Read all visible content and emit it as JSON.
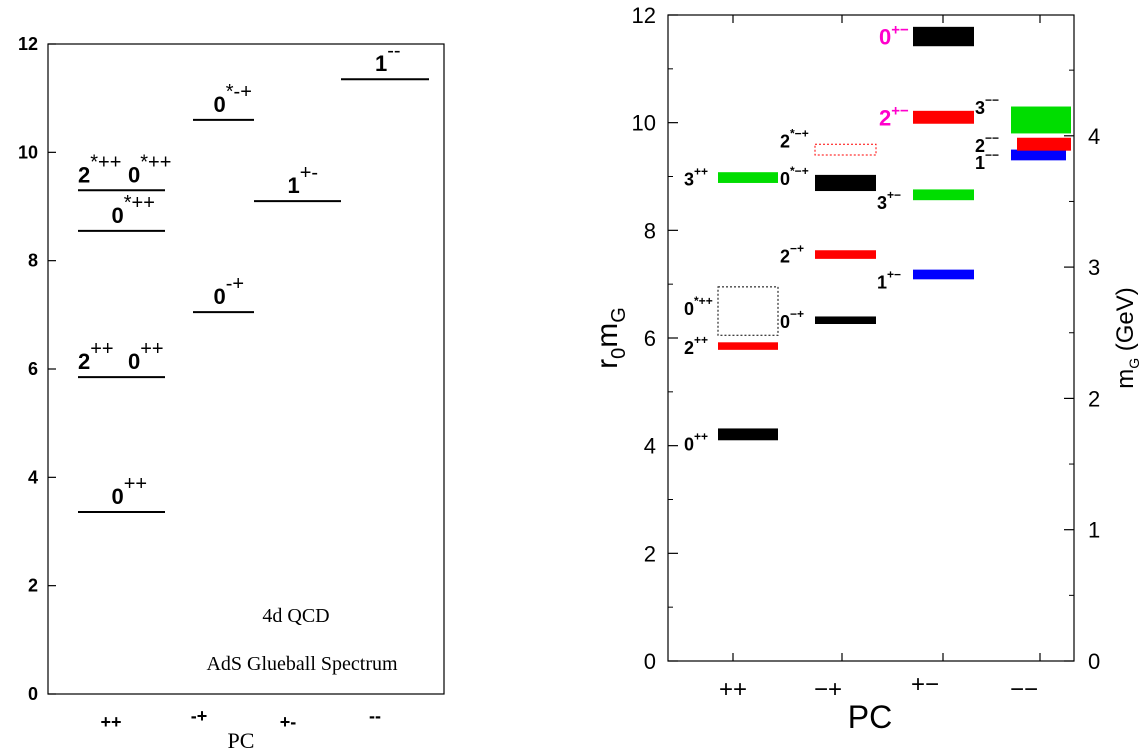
{
  "chart_data": [
    {
      "type": "bar",
      "title": "",
      "annotations": [
        "4d  QCD",
        "AdS Glueball Spectrum"
      ],
      "xlabel": "PC",
      "ylabel": "",
      "ylim": [
        0,
        12
      ],
      "yticks": [
        "0",
        "2",
        "4",
        "6",
        "8",
        "10",
        "12"
      ],
      "categories": [
        "++",
        "-+",
        "+-",
        "--"
      ],
      "levels": [
        {
          "category": "++",
          "value": 3.36,
          "label": "0",
          "sup": "++"
        },
        {
          "category": "++",
          "value": 5.85,
          "label": "2",
          "sup": "++",
          "label2": "0",
          "sup2": "++"
        },
        {
          "category": "++",
          "value": 8.55,
          "label": "0",
          "sup": "*++"
        },
        {
          "category": "++",
          "value": 9.3,
          "label": "2",
          "sup": "*++",
          "label2": "0",
          "sup2": "*++"
        },
        {
          "category": "-+",
          "value": 7.05,
          "label": "0",
          "sup": "-+"
        },
        {
          "category": "-+",
          "value": 10.6,
          "label": "0",
          "sup": "*-+"
        },
        {
          "category": "+-",
          "value": 9.1,
          "label": "1",
          "sup": "+-"
        },
        {
          "category": "--",
          "value": 11.35,
          "label": "1",
          "sup": "--"
        }
      ]
    },
    {
      "type": "bar",
      "title": "",
      "xlabel": "PC",
      "ylabel": "r0mG",
      "ylabel_main": "r",
      "ylabel_sub1": "0",
      "ylabel_mid": "m",
      "ylabel_sub2": "G",
      "y2label": "mG (GeV)",
      "y2label_main": "m",
      "y2label_sub": "G",
      "y2label_unit": " (GeV)",
      "ylim": [
        0,
        12
      ],
      "yticks": [
        "0",
        "2",
        "4",
        "6",
        "8",
        "10",
        "12"
      ],
      "y2ticks": [
        "0",
        "1",
        "2",
        "3",
        "4"
      ],
      "y2_gev_per_unit": 0.41,
      "categories": [
        "++",
        "−+",
        "+−",
        "−−"
      ],
      "states": [
        {
          "category": "++",
          "value": 4.21,
          "err": 0.11,
          "color": "#000000",
          "label": "0",
          "sup": "++",
          "label_color": "#000000"
        },
        {
          "category": "++",
          "value": 5.85,
          "err": 0.07,
          "color": "#ff0000",
          "label": "2",
          "sup": "++",
          "label_color": "#000000"
        },
        {
          "category": "++",
          "value": 6.5,
          "err": 0.45,
          "color": "dotted-black",
          "label": "0",
          "sup": "*++",
          "label_color": "#000000"
        },
        {
          "category": "++",
          "value": 8.98,
          "err": 0.1,
          "color": "#00dd00",
          "label": "3",
          "sup": "++",
          "label_color": "#000000"
        },
        {
          "category": "−+",
          "value": 6.33,
          "err": 0.07,
          "color": "#000000",
          "label": "0",
          "sup": "−+",
          "label_color": "#000000"
        },
        {
          "category": "−+",
          "value": 7.55,
          "err": 0.08,
          "color": "#ff0000",
          "label": "2",
          "sup": "−+",
          "label_color": "#000000"
        },
        {
          "category": "−+",
          "value": 8.88,
          "err": 0.15,
          "color": "#000000",
          "label": "0",
          "sup": "*−+",
          "label_color": "#000000"
        },
        {
          "category": "−+",
          "value": 9.5,
          "err": 0.1,
          "color": "dotted-red",
          "label": "2",
          "sup": "*−+",
          "label_color": "#000000"
        },
        {
          "category": "+−",
          "value": 7.18,
          "err": 0.09,
          "color": "#0000ff",
          "label": "1",
          "sup": "+−",
          "label_color": "#000000"
        },
        {
          "category": "+−",
          "value": 8.66,
          "err": 0.1,
          "color": "#00dd00",
          "label": "3",
          "sup": "+−",
          "label_color": "#000000"
        },
        {
          "category": "+−",
          "value": 10.1,
          "err": 0.12,
          "color": "#ff0000",
          "label": "2",
          "sup": "+−",
          "label_color": "#ff00cc"
        },
        {
          "category": "+−",
          "value": 11.6,
          "err": 0.18,
          "color": "#000000",
          "label": "0",
          "sup": "+−",
          "label_color": "#ff00cc"
        },
        {
          "category": "−−",
          "value": 9.4,
          "err": 0.1,
          "color": "#0000ff",
          "label": "1",
          "sup": "−−",
          "label_color": "#000000"
        },
        {
          "category": "−−",
          "value": 9.6,
          "err": 0.12,
          "color": "#ff0000",
          "label": "2",
          "sup": "−−",
          "label_color": "#000000"
        },
        {
          "category": "−−",
          "value": 10.05,
          "err": 0.25,
          "color": "#00dd00",
          "label": "3",
          "sup": "−−",
          "label_color": "#000000"
        }
      ]
    }
  ]
}
